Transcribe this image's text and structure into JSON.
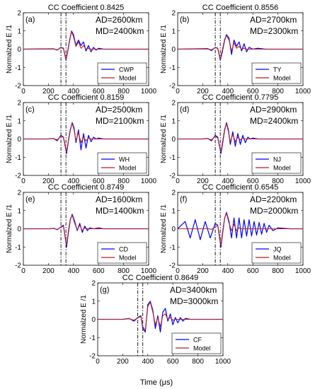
{
  "figure": {
    "xlabel": "Time (μs)",
    "ylabel": "Normalzed E /1"
  },
  "chart_data": [
    {
      "type": "line",
      "panel": "(a)",
      "title": "CC Coefficient 0.8425",
      "ad": "AD=2600km",
      "md": "MD=2400km",
      "station": "CWP",
      "xlim": [
        0,
        1000
      ],
      "ylim": [
        -2,
        2
      ],
      "xticks": [
        0,
        200,
        400,
        600,
        800,
        1000
      ],
      "yticks": [
        -2,
        -1,
        0,
        1,
        2
      ],
      "vlines": [
        300,
        340
      ],
      "series": [
        {
          "name": "CWP",
          "color": "#0000ff",
          "x": [
            0,
            240,
            270,
            300,
            320,
            340,
            355,
            370,
            385,
            400,
            420,
            440,
            460,
            480,
            500,
            520,
            540,
            560,
            580,
            600,
            640,
            700,
            800,
            1000
          ],
          "y": [
            0,
            0.02,
            -0.05,
            0.1,
            0.05,
            -0.6,
            -0.1,
            0.5,
            1.0,
            0.8,
            0.2,
            0.5,
            0.2,
            0.4,
            -0.1,
            0.2,
            -0.15,
            0.1,
            -0.05,
            0.05,
            0,
            0,
            0,
            0
          ]
        },
        {
          "name": "Model",
          "color": "#b22222",
          "x": [
            0,
            240,
            270,
            300,
            320,
            340,
            355,
            370,
            385,
            400,
            420,
            440,
            460,
            480,
            500,
            520,
            540,
            560,
            580,
            600,
            640,
            700,
            800,
            1000
          ],
          "y": [
            0,
            0.01,
            -0.03,
            0.08,
            0.03,
            -0.55,
            -0.05,
            0.55,
            0.95,
            0.7,
            0.15,
            0.4,
            0.05,
            0.2,
            0,
            0.05,
            0,
            0,
            0,
            0,
            0,
            0,
            0,
            0
          ]
        }
      ]
    },
    {
      "type": "line",
      "panel": "(b)",
      "title": "CC Coefficient 0.8556",
      "ad": "AD=2700km",
      "md": "MD=2300km",
      "station": "TY",
      "xlim": [
        0,
        1000
      ],
      "ylim": [
        -2,
        2
      ],
      "xticks": [
        0,
        200,
        400,
        600,
        800,
        1000
      ],
      "yticks": [
        -2,
        -1,
        0,
        1,
        2
      ],
      "vlines": [
        300,
        340
      ],
      "series": [
        {
          "name": "TY",
          "color": "#0000ff",
          "x": [
            0,
            240,
            270,
            300,
            320,
            340,
            355,
            375,
            390,
            410,
            430,
            450,
            470,
            490,
            510,
            530,
            550,
            570,
            600,
            640,
            700,
            800,
            1000
          ],
          "y": [
            0,
            0.03,
            -0.08,
            0.1,
            0.05,
            -0.6,
            -0.2,
            0.5,
            0.8,
            0.6,
            -0.3,
            0.5,
            0.15,
            0.4,
            -0.1,
            0.3,
            -0.15,
            0.1,
            0,
            0.05,
            0,
            0,
            0
          ]
        },
        {
          "name": "Model",
          "color": "#b22222",
          "x": [
            0,
            240,
            270,
            300,
            320,
            340,
            355,
            375,
            390,
            410,
            430,
            450,
            470,
            490,
            510,
            530,
            550,
            570,
            600,
            640,
            700,
            800,
            1000
          ],
          "y": [
            0,
            0.01,
            -0.04,
            0.08,
            0.04,
            -0.55,
            -0.1,
            0.55,
            0.75,
            0.5,
            -0.1,
            0.35,
            0.05,
            0.15,
            0,
            0.05,
            0,
            0,
            0,
            0,
            0,
            0,
            0
          ]
        }
      ]
    },
    {
      "type": "line",
      "panel": "(c)",
      "title": "CC Coefficient 0.8159",
      "ad": "AD=2500km",
      "md": "MD=2100km",
      "station": "WH",
      "xlim": [
        0,
        1000
      ],
      "ylim": [
        -2,
        2
      ],
      "xticks": [
        0,
        200,
        400,
        600,
        800,
        1000
      ],
      "yticks": [
        -2,
        -1,
        0,
        1,
        2
      ],
      "vlines": [
        300,
        340
      ],
      "series": [
        {
          "name": "WH",
          "color": "#0000ff",
          "x": [
            0,
            200,
            240,
            270,
            300,
            320,
            345,
            360,
            375,
            390,
            405,
            420,
            440,
            460,
            480,
            500,
            520,
            540,
            560,
            580,
            600,
            640,
            700,
            800,
            1000
          ],
          "y": [
            0,
            0,
            0.03,
            -0.1,
            0.2,
            0.1,
            -0.8,
            -0.1,
            0.5,
            0.9,
            0.6,
            -0.2,
            0.5,
            -0.6,
            0.3,
            -0.5,
            0.2,
            -0.15,
            0.1,
            0,
            0.05,
            0,
            0,
            0,
            0
          ]
        },
        {
          "name": "Model",
          "color": "#b22222",
          "x": [
            0,
            200,
            240,
            270,
            300,
            320,
            345,
            360,
            375,
            390,
            405,
            420,
            440,
            460,
            480,
            500,
            520,
            540,
            560,
            580,
            600,
            640,
            700,
            800,
            1000
          ],
          "y": [
            0,
            0,
            0.02,
            -0.05,
            0.15,
            0.08,
            -0.7,
            -0.05,
            0.55,
            0.85,
            0.5,
            -0.1,
            0.35,
            -0.2,
            0.1,
            -0.1,
            0.05,
            0,
            0,
            0,
            0,
            0,
            0,
            0,
            0
          ]
        }
      ]
    },
    {
      "type": "line",
      "panel": "(d)",
      "title": "CC Coefficient 0.7795",
      "ad": "AD=2900km",
      "md": "MD=2400km",
      "station": "NJ",
      "xlim": [
        0,
        1000
      ],
      "ylim": [
        -2,
        2
      ],
      "xticks": [
        0,
        200,
        400,
        600,
        800,
        1000
      ],
      "yticks": [
        -2,
        -1,
        0,
        1,
        2
      ],
      "vlines": [
        300,
        340
      ],
      "series": [
        {
          "name": "NJ",
          "color": "#0000ff",
          "x": [
            0,
            200,
            240,
            270,
            300,
            320,
            345,
            360,
            375,
            390,
            405,
            420,
            440,
            460,
            480,
            500,
            520,
            540,
            560,
            580,
            600,
            640,
            700,
            800,
            1000
          ],
          "y": [
            0,
            0,
            0.03,
            -0.1,
            0.2,
            0.1,
            -0.8,
            -0.2,
            0.5,
            0.9,
            0.5,
            -0.3,
            0.4,
            -0.4,
            0.3,
            -0.3,
            0.2,
            -0.2,
            0.1,
            0,
            0.05,
            0,
            0,
            0,
            0
          ]
        },
        {
          "name": "Model",
          "color": "#b22222",
          "x": [
            0,
            200,
            240,
            270,
            300,
            320,
            345,
            360,
            375,
            390,
            405,
            420,
            440,
            460,
            480,
            500,
            520,
            540,
            560,
            580,
            600,
            640,
            700,
            800,
            1000
          ],
          "y": [
            0,
            0,
            0.02,
            -0.05,
            0.15,
            0.05,
            -0.7,
            -0.1,
            0.55,
            0.85,
            0.4,
            -0.15,
            0.25,
            -0.15,
            0.1,
            -0.05,
            0.05,
            0,
            0,
            0,
            0,
            0,
            0,
            0,
            0
          ]
        }
      ]
    },
    {
      "type": "line",
      "panel": "(e)",
      "title": "CC Coefficient 0.8749",
      "ad": "AD=1600km",
      "md": "MD=1400km",
      "station": "CD",
      "xlim": [
        0,
        1000
      ],
      "ylim": [
        -2,
        2
      ],
      "xticks": [
        0,
        200,
        400,
        600,
        800,
        1000
      ],
      "yticks": [
        -2,
        -1,
        0,
        1,
        2
      ],
      "vlines": [
        300,
        340
      ],
      "series": [
        {
          "name": "CD",
          "color": "#0000ff",
          "x": [
            0,
            200,
            240,
            270,
            300,
            320,
            345,
            360,
            375,
            390,
            410,
            430,
            450,
            470,
            490,
            510,
            530,
            560,
            600,
            640,
            700,
            800,
            1000
          ],
          "y": [
            0,
            0,
            0.03,
            -0.05,
            0.1,
            0.2,
            -1.0,
            -0.2,
            0.5,
            0.8,
            0.4,
            -0.1,
            0.3,
            -0.2,
            0.15,
            -0.1,
            0.05,
            0,
            0.05,
            0,
            0,
            0,
            0
          ]
        },
        {
          "name": "Model",
          "color": "#b22222",
          "x": [
            0,
            200,
            240,
            270,
            300,
            320,
            345,
            360,
            375,
            390,
            410,
            430,
            450,
            470,
            490,
            510,
            530,
            560,
            600,
            640,
            700,
            800,
            1000
          ],
          "y": [
            0,
            0,
            0.02,
            -0.03,
            0.08,
            0.15,
            -0.9,
            -0.1,
            0.55,
            0.75,
            0.3,
            -0.05,
            0.2,
            -0.1,
            0.05,
            0,
            0,
            0,
            0,
            0,
            0,
            0,
            0
          ]
        }
      ]
    },
    {
      "type": "line",
      "panel": "(f)",
      "title": "CC Coefficient 0.6545",
      "ad": "AD=2200km",
      "md": "MD=2000km",
      "station": "JQ",
      "xlim": [
        0,
        1000
      ],
      "ylim": [
        -2,
        2
      ],
      "xticks": [
        0,
        200,
        400,
        600,
        800,
        1000
      ],
      "yticks": [
        -2,
        -1,
        0,
        1,
        2
      ],
      "vlines": [
        300,
        340
      ],
      "series": [
        {
          "name": "JQ",
          "color": "#0000ff",
          "x": [
            0,
            60,
            100,
            140,
            180,
            220,
            260,
            300,
            320,
            345,
            360,
            375,
            390,
            410,
            430,
            450,
            470,
            490,
            510,
            530,
            550,
            570,
            590,
            610,
            630,
            650,
            670,
            690,
            710,
            730,
            760,
            800,
            900,
            1000
          ],
          "y": [
            0,
            0.4,
            -0.5,
            0.5,
            -0.6,
            0.4,
            -0.5,
            0.3,
            0.2,
            -1.0,
            -0.2,
            0.6,
            0.9,
            0.4,
            -0.5,
            0.6,
            -0.5,
            0.6,
            -0.5,
            0.5,
            -0.4,
            0.5,
            -0.4,
            0.4,
            -0.35,
            0.35,
            -0.3,
            0.3,
            -0.2,
            0.2,
            -0.1,
            0.05,
            0,
            0
          ]
        },
        {
          "name": "Model",
          "color": "#b22222",
          "x": [
            0,
            200,
            240,
            270,
            300,
            320,
            345,
            360,
            375,
            390,
            410,
            430,
            450,
            470,
            490,
            510,
            530,
            560,
            600,
            640,
            700,
            800,
            1000
          ],
          "y": [
            0,
            0,
            0.02,
            -0.03,
            0.1,
            0.2,
            -0.9,
            -0.1,
            0.6,
            0.85,
            0.3,
            -0.1,
            0.25,
            -0.1,
            0.05,
            0,
            0,
            0,
            0,
            0,
            0,
            0,
            0
          ]
        }
      ]
    },
    {
      "type": "line",
      "panel": "(g)",
      "title": "CC Coefficient 0.8649",
      "ad": "AD=3400km",
      "md": "MD=3000km",
      "station": "CF",
      "xlim": [
        0,
        1000
      ],
      "ylim": [
        -2,
        2
      ],
      "xticks": [
        0,
        200,
        400,
        600,
        800,
        1000
      ],
      "yticks": [
        -2,
        -1,
        0,
        1,
        2
      ],
      "vlines": [
        320,
        360
      ],
      "series": [
        {
          "name": "CF",
          "color": "#0000ff",
          "x": [
            0,
            200,
            250,
            290,
            320,
            345,
            360,
            380,
            400,
            420,
            440,
            460,
            480,
            500,
            520,
            540,
            560,
            580,
            600,
            620,
            640,
            660,
            680,
            700,
            740,
            800,
            900,
            1000
          ],
          "y": [
            0,
            0,
            0.05,
            -0.1,
            0.1,
            0.2,
            -0.5,
            -0.7,
            0.8,
            1.0,
            0.5,
            -0.5,
            0.2,
            -0.7,
            0.4,
            0.6,
            -0.1,
            0.3,
            -0.3,
            0.1,
            -0.2,
            0.1,
            -0.1,
            0.05,
            0,
            0,
            0,
            0
          ]
        },
        {
          "name": "Model",
          "color": "#b22222",
          "x": [
            0,
            200,
            250,
            290,
            320,
            345,
            360,
            380,
            400,
            420,
            440,
            460,
            480,
            500,
            520,
            540,
            560,
            580,
            600,
            620,
            640,
            660,
            680,
            700,
            740,
            800,
            900,
            1000
          ],
          "y": [
            0,
            0,
            0.03,
            -0.05,
            0.08,
            0.15,
            -0.4,
            -0.6,
            0.7,
            0.95,
            0.4,
            -0.3,
            0.1,
            -0.4,
            0.2,
            0.3,
            0,
            0.1,
            -0.05,
            0,
            0,
            0,
            0,
            0,
            0,
            0,
            0,
            0
          ]
        }
      ]
    }
  ]
}
